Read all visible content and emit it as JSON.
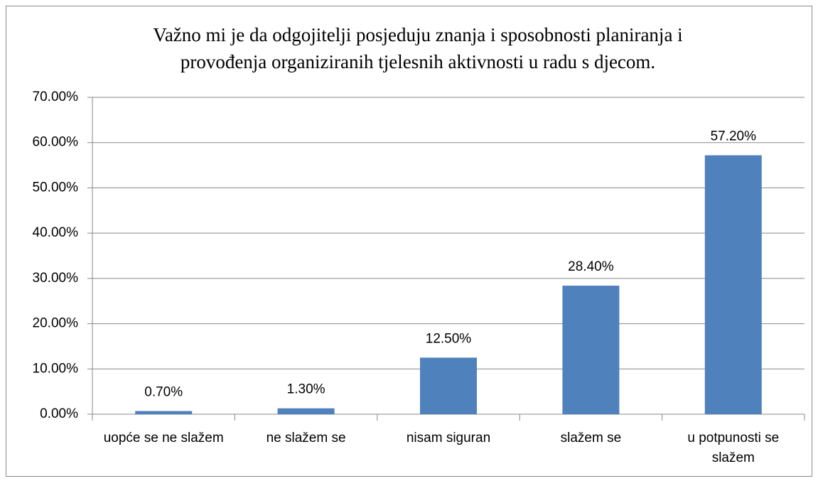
{
  "chart_data": {
    "type": "bar",
    "title": [
      "Važno mi je da odgojitelji posjeduju znanja i sposobnosti planiranja i",
      "provođenja organiziranih tjelesnih aktivnosti u radu s djecom."
    ],
    "categories": [
      "uopće se ne slažem",
      "ne slažem se",
      "nisam siguran",
      "slažem se",
      "u potpunosti se slažem"
    ],
    "values": [
      0.7,
      1.3,
      12.5,
      28.4,
      57.2
    ],
    "value_labels": [
      "0.70%",
      "1.30%",
      "12.50%",
      "28.40%",
      "57.20%"
    ],
    "color": "#4f81bd",
    "ylim": [
      0,
      70
    ],
    "yticks": [
      {
        "value": 0,
        "label": "0.00%"
      },
      {
        "value": 10,
        "label": "10.00%"
      },
      {
        "value": 20,
        "label": "20.00%"
      },
      {
        "value": 30,
        "label": "30.00%"
      },
      {
        "value": 40,
        "label": "40.00%"
      },
      {
        "value": 50,
        "label": "50.00%"
      },
      {
        "value": 60,
        "label": "60.00%"
      },
      {
        "value": 70,
        "label": "70.00%"
      }
    ],
    "grid": true
  }
}
